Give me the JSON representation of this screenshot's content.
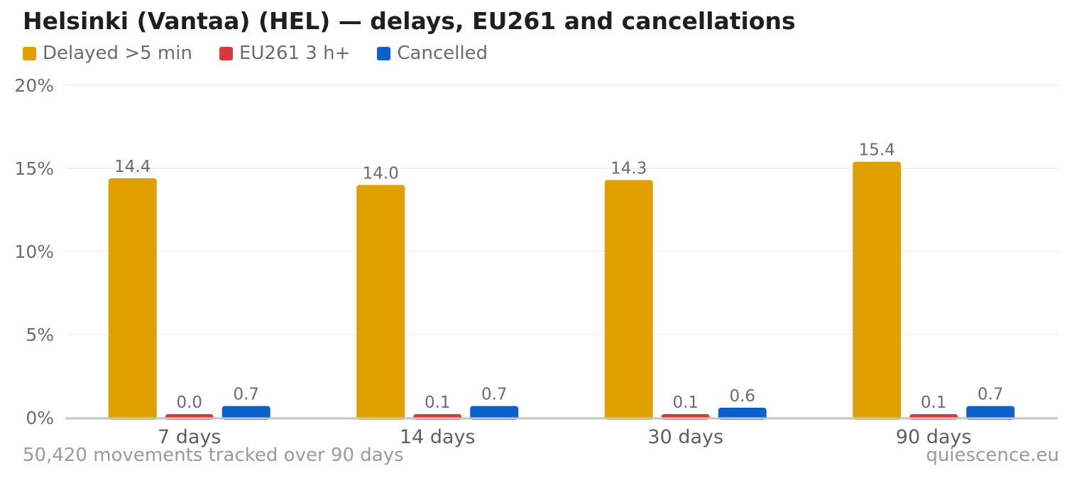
{
  "title": "Helsinki (Vantaa) (HEL) — delays, EU261 and cancellations",
  "footer": {
    "note": "50,420 movements tracked over 90 days",
    "source": "quiescence.eu"
  },
  "chart_data": {
    "type": "bar",
    "title": "Helsinki (Vantaa) (HEL) — delays, EU261 and cancellations",
    "categories": [
      "7 days",
      "14 days",
      "30 days",
      "90 days"
    ],
    "series": [
      {
        "name": "Delayed >5 min",
        "color": "#e0a000",
        "values": [
          14.4,
          14.0,
          14.3,
          15.4
        ],
        "labels": [
          "14.4",
          "14.0",
          "14.3",
          "15.4"
        ]
      },
      {
        "name": "EU261 3 h+",
        "color": "#d63b3b",
        "values": [
          0.0,
          0.1,
          0.1,
          0.1
        ],
        "labels": [
          "0.0",
          "0.1",
          "0.1",
          "0.1"
        ]
      },
      {
        "name": "Cancelled",
        "color": "#0a62c9",
        "values": [
          0.7,
          0.7,
          0.6,
          0.7
        ],
        "labels": [
          "0.7",
          "0.7",
          "0.6",
          "0.7"
        ]
      }
    ],
    "yticks": [
      "0%",
      "5%",
      "10%",
      "15%",
      "20%"
    ],
    "ylim": [
      0,
      20
    ],
    "xlabel": "",
    "ylabel": "",
    "grid": true,
    "legend": "top-left"
  }
}
